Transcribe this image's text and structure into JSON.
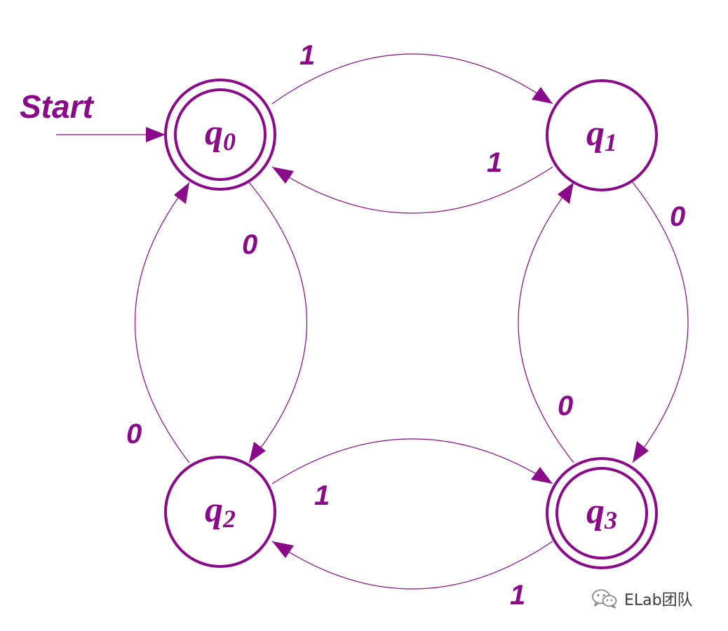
{
  "diagram": {
    "type": "finite-automaton",
    "start_label": "Start",
    "start_state": "q0",
    "accepting_states": [
      "q0",
      "q3"
    ],
    "states": [
      {
        "id": "q0",
        "name": "q",
        "subscript": "0",
        "accepting": true
      },
      {
        "id": "q1",
        "name": "q",
        "subscript": "1",
        "accepting": false
      },
      {
        "id": "q2",
        "name": "q",
        "subscript": "2",
        "accepting": false
      },
      {
        "id": "q3",
        "name": "q",
        "subscript": "3",
        "accepting": true
      }
    ],
    "transitions": [
      {
        "from": "q0",
        "to": "q1",
        "symbol": "1"
      },
      {
        "from": "q1",
        "to": "q0",
        "symbol": "1"
      },
      {
        "from": "q0",
        "to": "q2",
        "symbol": "0"
      },
      {
        "from": "q2",
        "to": "q0",
        "symbol": "0"
      },
      {
        "from": "q1",
        "to": "q3",
        "symbol": "0"
      },
      {
        "from": "q3",
        "to": "q1",
        "symbol": "0"
      },
      {
        "from": "q2",
        "to": "q3",
        "symbol": "1"
      },
      {
        "from": "q3",
        "to": "q2",
        "symbol": "1"
      }
    ]
  },
  "colors": {
    "primary": "#8a0a8a",
    "background": "#ffffff"
  },
  "watermark": {
    "icon": "wechat-icon",
    "text": "ELab团队"
  }
}
